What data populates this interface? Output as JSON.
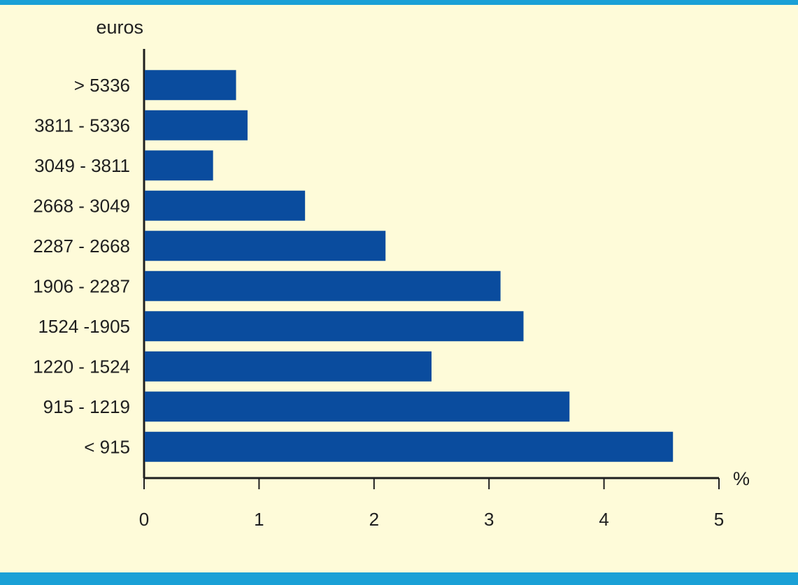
{
  "chart_data": {
    "type": "bar",
    "orientation": "horizontal",
    "ylabel": "euros",
    "xlabel": "%",
    "categories": [
      "> 5336",
      "3811 - 5336",
      "3049 - 3811",
      "2668 - 3049",
      "2287 - 2668",
      "1906 - 2287",
      "1524 -1905",
      "1220 - 1524",
      "915 - 1219",
      "< 915"
    ],
    "values": [
      0.8,
      0.9,
      0.6,
      1.4,
      2.1,
      3.1,
      3.3,
      2.5,
      3.7,
      4.6
    ],
    "xlim": [
      0,
      5
    ],
    "xticks": [
      0,
      1,
      2,
      3,
      4,
      5
    ],
    "grid": false,
    "bar_color": "#0a4c9e",
    "background_color": "#fefbd9",
    "frame_color": "#1aa0d6"
  }
}
